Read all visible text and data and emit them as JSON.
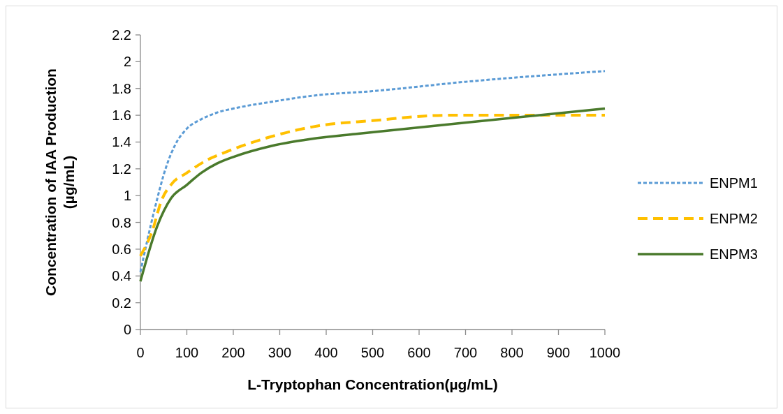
{
  "chart_data": {
    "type": "line",
    "xlabel": "L-Tryptophan Concentration(µg/mL)",
    "ylabel": "Concentration of IAA Production (µg/mL)",
    "xlim": [
      0,
      1000
    ],
    "xticks": [
      0,
      100,
      200,
      300,
      400,
      500,
      600,
      700,
      800,
      900,
      1000
    ],
    "ylim": [
      0,
      2.2
    ],
    "yticks": [
      0,
      0.2,
      0.4,
      0.6,
      0.8,
      1,
      1.2,
      1.4,
      1.6,
      1.8,
      2,
      2.2
    ],
    "grid": false,
    "legend": "right",
    "marker": "none",
    "series": [
      {
        "name": "ENPM1",
        "color": "#5b9bd5",
        "line_style": "dotted",
        "x": [
          0,
          30,
          56,
          75,
          100,
          131,
          165,
          200,
          281,
          381,
          500,
          700,
          1000
        ],
        "values": [
          0.43,
          0.89,
          1.22,
          1.38,
          1.5,
          1.57,
          1.62,
          1.65,
          1.7,
          1.75,
          1.78,
          1.85,
          1.93
        ]
      },
      {
        "name": "ENPM2",
        "color": "#ffc000",
        "line_style": "dashed",
        "x": [
          0,
          26,
          45,
          68,
          100,
          146,
          180,
          281,
          381,
          500,
          662,
          1000
        ],
        "values": [
          0.55,
          0.74,
          0.96,
          1.09,
          1.17,
          1.27,
          1.32,
          1.44,
          1.52,
          1.56,
          1.6,
          1.6
        ]
      },
      {
        "name": "ENPM3",
        "color": "#4a7a2c",
        "line_style": "solid",
        "x": [
          0,
          36,
          66,
          100,
          131,
          165,
          201,
          281,
          381,
          462,
          713,
          1000
        ],
        "values": [
          0.36,
          0.77,
          0.98,
          1.08,
          1.17,
          1.24,
          1.29,
          1.37,
          1.43,
          1.46,
          1.55,
          1.65
        ]
      }
    ]
  }
}
